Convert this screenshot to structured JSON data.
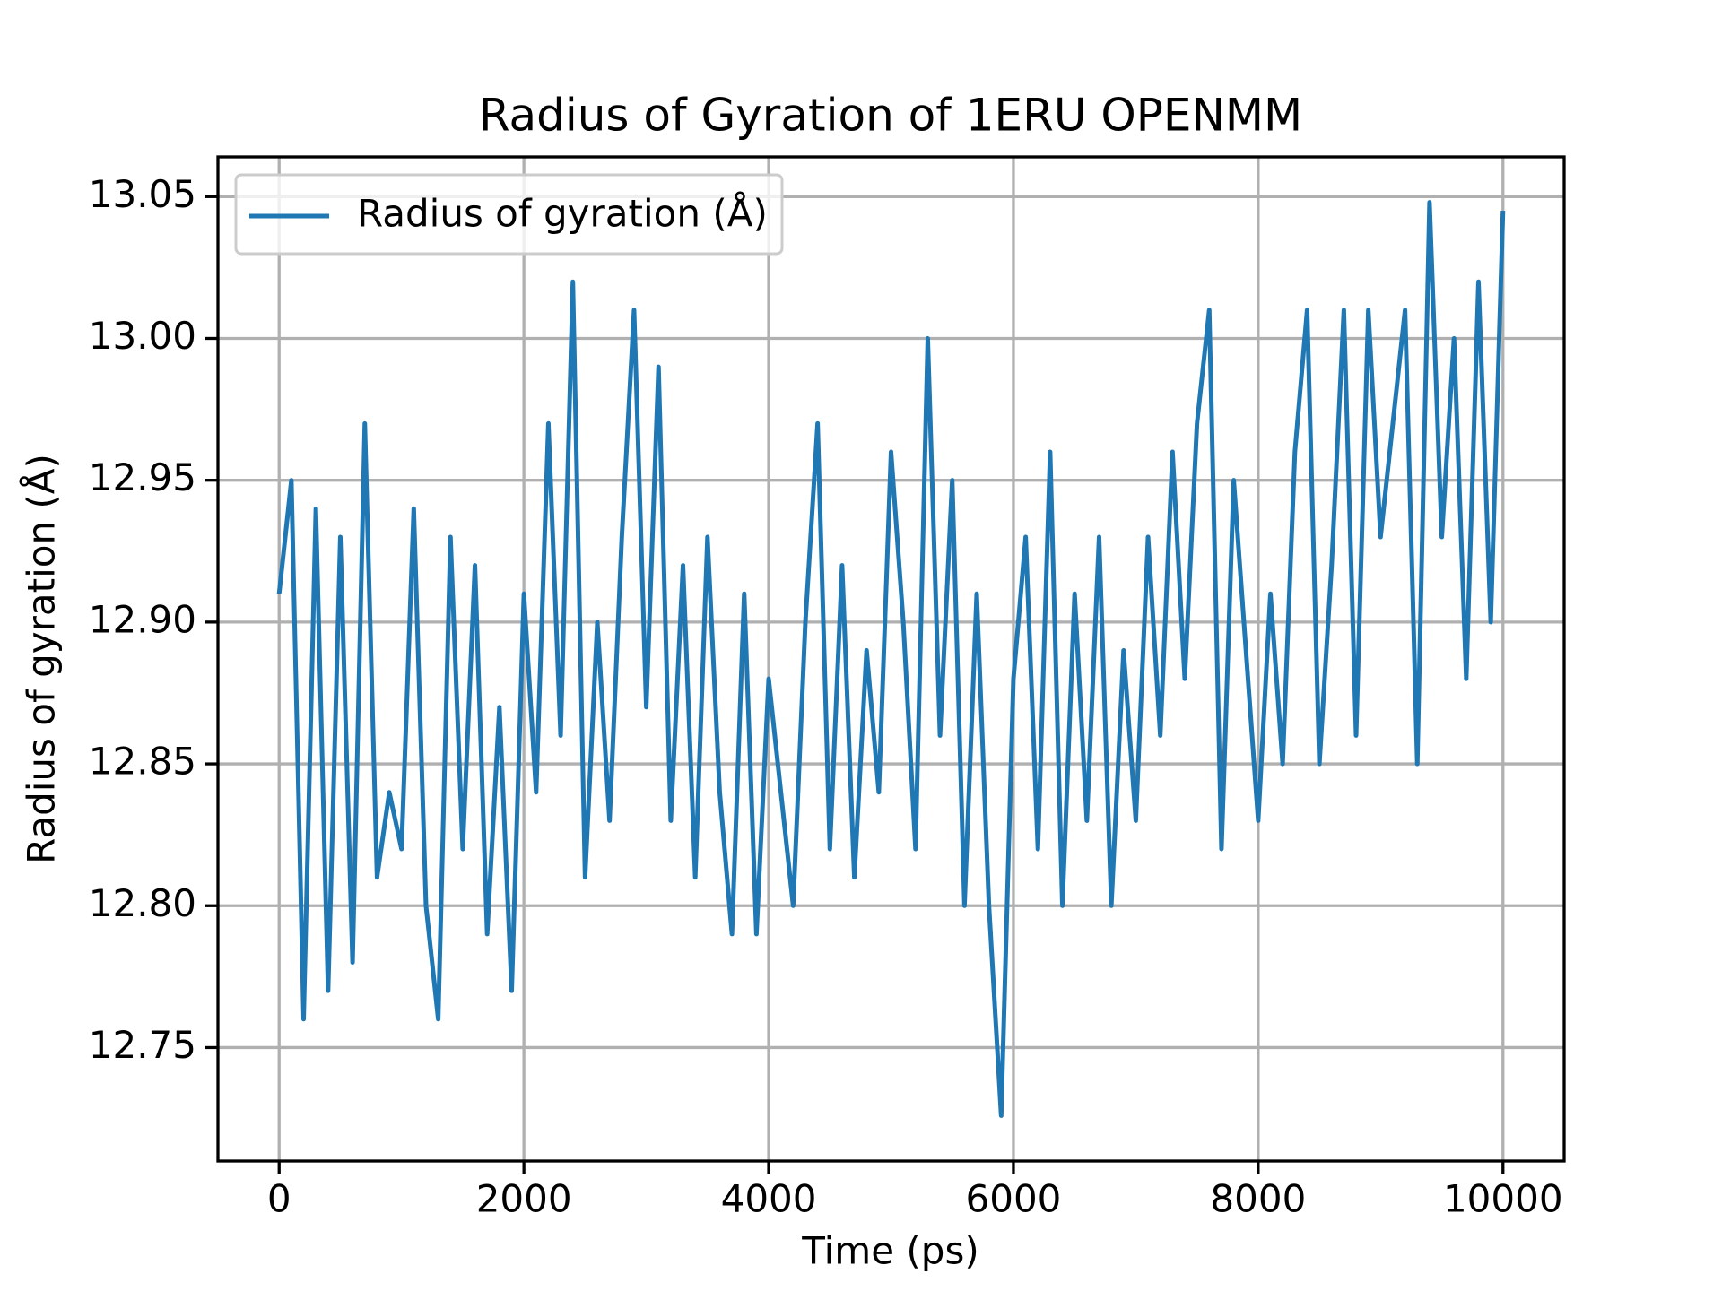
{
  "chart_data": {
    "type": "line",
    "title": "Radius of Gyration of 1ERU OPENMM",
    "xlabel": "Time (ps)",
    "ylabel": "Radius of gyration (Å)",
    "x": [
      0,
      100,
      200,
      300,
      400,
      500,
      600,
      700,
      800,
      900,
      1000,
      1100,
      1200,
      1300,
      1400,
      1500,
      1600,
      1700,
      1800,
      1900,
      2000,
      2100,
      2200,
      2300,
      2400,
      2500,
      2600,
      2700,
      2800,
      2900,
      3000,
      3100,
      3200,
      3300,
      3400,
      3500,
      3600,
      3700,
      3800,
      3900,
      4000,
      4100,
      4200,
      4300,
      4400,
      4500,
      4600,
      4700,
      4800,
      4900,
      5000,
      5100,
      5200,
      5300,
      5400,
      5500,
      5600,
      5700,
      5800,
      5900,
      6000,
      6100,
      6200,
      6300,
      6400,
      6500,
      6600,
      6700,
      6800,
      6900,
      7000,
      7100,
      7200,
      7300,
      7400,
      7500,
      7600,
      7700,
      7800,
      7900,
      8000,
      8100,
      8200,
      8300,
      8400,
      8500,
      8600,
      8700,
      8800,
      8900,
      9000,
      9100,
      9200,
      9300,
      9400,
      9500,
      9600,
      9700,
      9800,
      9900,
      10000
    ],
    "series": [
      {
        "name": "Radius of gyration (Å)",
        "color": "#1f77b4",
        "values": [
          12.91,
          12.95,
          12.76,
          12.94,
          12.77,
          12.93,
          12.78,
          12.97,
          12.81,
          12.84,
          12.82,
          12.94,
          12.8,
          12.76,
          12.93,
          12.82,
          12.92,
          12.79,
          12.87,
          12.77,
          12.91,
          12.84,
          12.97,
          12.86,
          13.02,
          12.81,
          12.9,
          12.83,
          12.93,
          13.01,
          12.87,
          12.99,
          12.83,
          12.92,
          12.81,
          12.93,
          12.84,
          12.79,
          12.91,
          12.79,
          12.88,
          12.84,
          12.8,
          12.9,
          12.97,
          12.82,
          12.92,
          12.81,
          12.89,
          12.84,
          12.96,
          12.9,
          12.82,
          13.0,
          12.86,
          12.95,
          12.8,
          12.91,
          12.8,
          12.726,
          12.88,
          12.93,
          12.82,
          12.96,
          12.8,
          12.91,
          12.83,
          12.93,
          12.8,
          12.89,
          12.83,
          12.93,
          12.86,
          12.96,
          12.88,
          12.97,
          13.01,
          12.82,
          12.95,
          12.89,
          12.83,
          12.91,
          12.85,
          12.96,
          13.01,
          12.85,
          12.92,
          13.01,
          12.86,
          13.01,
          12.93,
          12.97,
          13.01,
          12.85,
          13.048,
          12.93,
          13.0,
          12.88,
          13.02,
          12.9,
          13.045
        ]
      }
    ],
    "xlim": [
      -500,
      10500
    ],
    "ylim": [
      12.71,
      13.064
    ],
    "xticks": [
      0,
      2000,
      4000,
      6000,
      8000,
      10000
    ],
    "yticks": [
      {
        "value": 12.75,
        "label": "12.75"
      },
      {
        "value": 12.8,
        "label": "12.80"
      },
      {
        "value": 12.85,
        "label": "12.85"
      },
      {
        "value": 12.9,
        "label": "12.90"
      },
      {
        "value": 12.95,
        "label": "12.95"
      },
      {
        "value": 13.0,
        "label": "13.00"
      },
      {
        "value": 13.05,
        "label": "13.05"
      }
    ],
    "grid": true,
    "legend": "upper left"
  }
}
